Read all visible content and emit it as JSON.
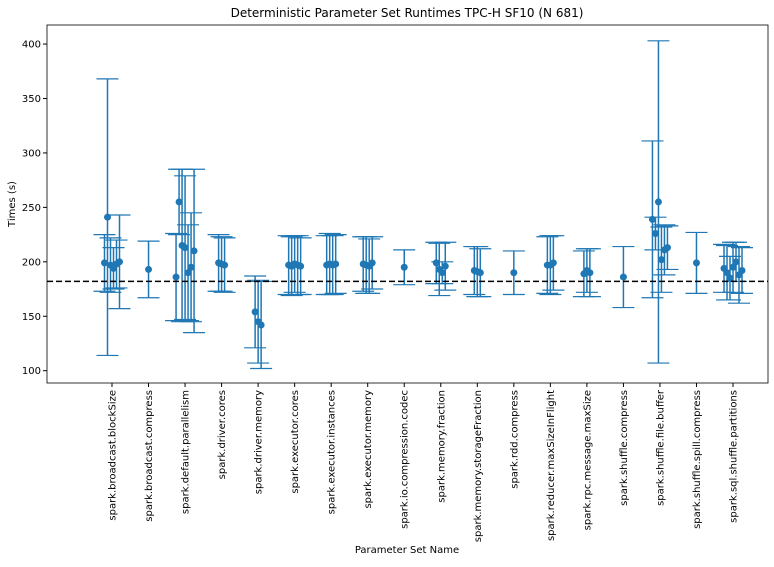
{
  "chart_data": {
    "type": "errorbar",
    "title": "Deterministic Parameter Set Runtimes TPC-H SF10 (N 681)",
    "x_label": "Parameter Set Name",
    "y_label": "Times (s)",
    "color": "#1f77b4",
    "hline": 182,
    "ylim": [
      88.7,
      417.5
    ],
    "yticks": [
      100,
      150,
      200,
      250,
      300,
      350,
      400
    ],
    "categories": [
      "spark.broadcast.blockSize",
      "spark.broadcast.compress",
      "spark.default.parallelism",
      "spark.driver.cores",
      "spark.driver.memory",
      "spark.executor.cores",
      "spark.executor.instances",
      "spark.executor.memory",
      "spark.io.compression.codec",
      "spark.memory.fraction",
      "spark.memory.storageFraction",
      "spark.rdd.compress",
      "spark.reducer.maxSizeInFlight",
      "spark.rpc.message.maxSize",
      "spark.shuffle.compress",
      "spark.shuffle.file.buffer",
      "spark.shuffle.spill.compress",
      "spark.sql.shuffle.partitions"
    ],
    "groups": [
      {
        "values": [
          199,
          241,
          197,
          194,
          198,
          200
        ],
        "errors": [
          26,
          127,
          25,
          19,
          22,
          43
        ]
      },
      {
        "values": [
          193
        ],
        "errors": [
          26
        ]
      },
      {
        "values": [
          186,
          255,
          215,
          213,
          190,
          195,
          210
        ],
        "errors": [
          40,
          30,
          70,
          66,
          44,
          50,
          75
        ]
      },
      {
        "values": [
          199,
          198,
          197
        ],
        "errors": [
          26,
          25,
          25
        ]
      },
      {
        "values": [
          154,
          145,
          142
        ],
        "errors": [
          33,
          38,
          40
        ]
      },
      {
        "values": [
          197,
          196,
          198,
          197,
          196
        ],
        "errors": [
          27,
          27,
          26,
          27,
          26
        ]
      },
      {
        "values": [
          197,
          198,
          197,
          198
        ],
        "errors": [
          27,
          28,
          27,
          27
        ]
      },
      {
        "values": [
          198,
          197,
          196,
          199
        ],
        "errors": [
          25,
          26,
          25,
          24
        ]
      },
      {
        "values": [
          195
        ],
        "errors": [
          16
        ]
      },
      {
        "values": [
          199,
          193,
          190,
          196
        ],
        "errors": [
          19,
          24,
          10,
          22
        ]
      },
      {
        "values": [
          192,
          191,
          190
        ],
        "errors": [
          22,
          23,
          22
        ]
      },
      {
        "values": [
          190
        ],
        "errors": [
          20
        ]
      },
      {
        "values": [
          197,
          197,
          199
        ],
        "errors": [
          26,
          27,
          25
        ]
      },
      {
        "values": [
          189,
          192,
          190
        ],
        "errors": [
          21,
          20,
          22
        ]
      },
      {
        "values": [
          186
        ],
        "errors": [
          28
        ]
      },
      {
        "values": [
          239,
          226,
          255,
          202,
          211,
          213
        ],
        "errors": [
          72,
          15,
          148,
          30,
          23,
          20
        ]
      },
      {
        "values": [
          199
        ],
        "errors": [
          28
        ]
      },
      {
        "values": [
          194,
          190,
          185,
          195,
          200,
          188,
          192
        ],
        "errors": [
          22,
          25,
          20,
          23,
          18,
          26,
          21
        ]
      }
    ]
  }
}
